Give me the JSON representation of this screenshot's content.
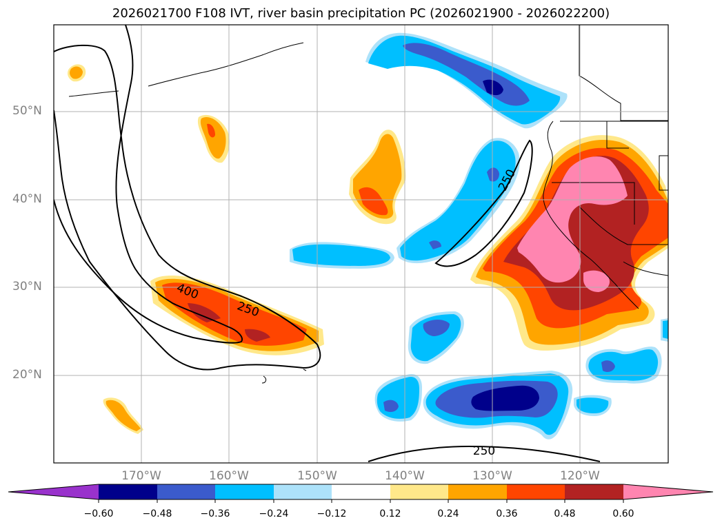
{
  "title": "2026021700 F108 IVT, river basin precipitation PC (2026021900 - 2026022200)",
  "axes": {
    "lat_labels": [
      "50°N",
      "40°N",
      "30°N",
      "20°N"
    ],
    "lon_labels": [
      "170°W",
      "160°W",
      "150°W",
      "140°W",
      "130°W",
      "120°W"
    ]
  },
  "contour_labels": [
    "400",
    "250",
    "250",
    "250"
  ],
  "colorbar": {
    "ticks": [
      "−0.60",
      "−0.48",
      "−0.36",
      "−0.24",
      "−0.12",
      "0.12",
      "0.24",
      "0.36",
      "0.48",
      "0.60"
    ],
    "colors": [
      "#9932CC",
      "#00008B",
      "#3B5BCC",
      "#00BFFF",
      "#ADE2FA",
      "#FFFFFF",
      "#FFE88A",
      "#FFA500",
      "#FF4500",
      "#B22222",
      "#FF85B0"
    ]
  }
}
